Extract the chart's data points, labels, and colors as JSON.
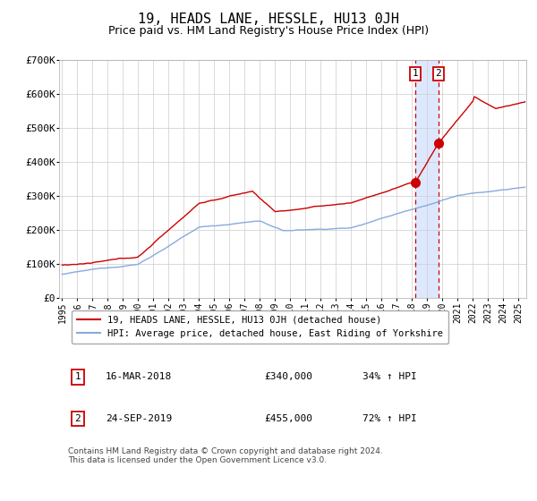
{
  "title": "19, HEADS LANE, HESSLE, HU13 0JH",
  "subtitle": "Price paid vs. HM Land Registry's House Price Index (HPI)",
  "title_fontsize": 11,
  "subtitle_fontsize": 9,
  "hpi_label": "HPI: Average price, detached house, East Riding of Yorkshire",
  "property_label": "19, HEADS LANE, HESSLE, HU13 0JH (detached house)",
  "red_color": "#cc0000",
  "blue_color": "#88aadd",
  "background_color": "#ffffff",
  "grid_color": "#cccccc",
  "annotation1": {
    "date": 2018.21,
    "value": 340000,
    "label": "1",
    "text": "16-MAR-2018",
    "price": "£340,000",
    "pct": "34% ↑ HPI"
  },
  "annotation2": {
    "date": 2019.73,
    "value": 455000,
    "label": "2",
    "text": "24-SEP-2019",
    "price": "£455,000",
    "pct": "72% ↑ HPI"
  },
  "ylim": [
    0,
    700000
  ],
  "yticks": [
    0,
    100000,
    200000,
    300000,
    400000,
    500000,
    600000,
    700000
  ],
  "ytick_labels": [
    "£0",
    "£100K",
    "£200K",
    "£300K",
    "£400K",
    "£500K",
    "£600K",
    "£700K"
  ],
  "xlim_start": 1994.8,
  "xlim_end": 2025.5,
  "footnote": "Contains HM Land Registry data © Crown copyright and database right 2024.\nThis data is licensed under the Open Government Licence v3.0.",
  "footnote_fontsize": 6.5,
  "span_color": "#dde8ff",
  "marker_size": 7
}
